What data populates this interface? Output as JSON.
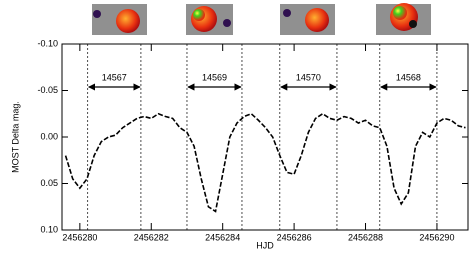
{
  "chart_data": {
    "type": "line",
    "x_label": "HJD",
    "y_label": "MOST Delta mag.",
    "xlim": [
      2456279.5,
      2456290.87
    ],
    "ylim": [
      -0.1,
      0.1
    ],
    "y_inverted": true,
    "xticks": [
      2456280,
      2456282,
      2456284,
      2456286,
      2456288,
      2456290
    ],
    "yticks": [
      {
        "value": -0.1,
        "label": "-0.10"
      },
      -0.05,
      {
        "value": 0,
        "label": "0.00"
      },
      0.05,
      {
        "value": 0.1,
        "label": "0.10"
      }
    ],
    "series": [
      {
        "color": "#000000",
        "x": [
          2456279.6,
          2456279.8,
          2456280.0,
          2456280.2,
          2456280.4,
          2456280.6,
          2456280.8,
          2456281.0,
          2456281.2,
          2456281.4,
          2456281.6,
          2456281.8,
          2456282.0,
          2456282.2,
          2456282.4,
          2456282.6,
          2456282.8,
          2456283.0,
          2456283.2,
          2456283.4,
          2456283.6,
          2456283.8,
          2456284.0,
          2456284.2,
          2456284.4,
          2456284.6,
          2456284.8,
          2456285.0,
          2456285.2,
          2456285.4,
          2456285.6,
          2456285.8,
          2456286.0,
          2456286.2,
          2456286.4,
          2456286.6,
          2456286.8,
          2456287.0,
          2456287.2,
          2456287.4,
          2456287.6,
          2456287.8,
          2456288.0,
          2456288.2,
          2456288.4,
          2456288.6,
          2456288.8,
          2456289.0,
          2456289.2,
          2456289.4,
          2456289.6,
          2456289.8,
          2456290.0,
          2456290.2,
          2456290.4,
          2456290.6,
          2456290.8
        ],
        "values": [
          0.02,
          0.045,
          0.055,
          0.045,
          0.02,
          0.005,
          0.0,
          -0.002,
          -0.01,
          -0.015,
          -0.02,
          -0.022,
          -0.02,
          -0.025,
          -0.022,
          -0.02,
          -0.01,
          -0.005,
          0.01,
          0.045,
          0.075,
          0.08,
          0.04,
          0.0,
          -0.015,
          -0.022,
          -0.025,
          -0.018,
          -0.01,
          0.0,
          0.02,
          0.038,
          0.04,
          0.02,
          -0.005,
          -0.02,
          -0.025,
          -0.02,
          -0.018,
          -0.022,
          -0.02,
          -0.015,
          -0.018,
          -0.012,
          -0.01,
          0.01,
          0.055,
          0.072,
          0.06,
          0.01,
          -0.005,
          0.0,
          -0.015,
          -0.02,
          -0.018,
          -0.012,
          -0.01
        ]
      }
    ],
    "segments": [
      {
        "label": "14567",
        "start": 2456280.22,
        "end": 2456281.71
      },
      {
        "label": "14569",
        "start": 2456283.0,
        "end": 2456284.54
      },
      {
        "label": "14570",
        "start": 2456285.6,
        "end": 2456287.2
      },
      {
        "label": "14568",
        "start": 2456288.4,
        "end": 2456290.0
      }
    ]
  }
}
